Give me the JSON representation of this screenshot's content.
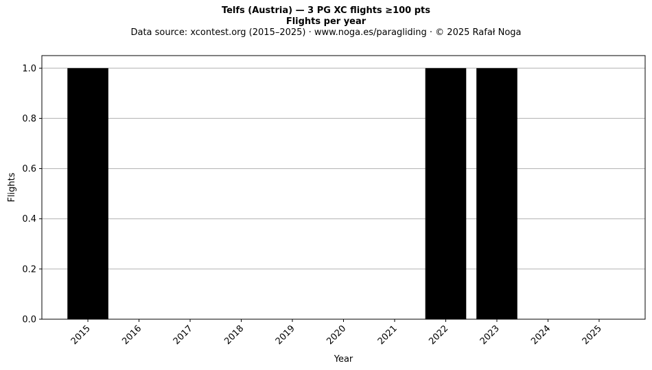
{
  "chart_data": {
    "type": "bar",
    "title": "Telfs (Austria)  —  3 PG XC flights ≥100 pts",
    "subtitle": "Flights per year",
    "source": "Data source: xcontest.org (2015–2025)  ·  www.noga.es/paragliding  ·  © 2025 Rafał Noga",
    "xlabel": "Year",
    "ylabel": "Flights",
    "categories": [
      "2015",
      "2016",
      "2017",
      "2018",
      "2019",
      "2020",
      "2021",
      "2022",
      "2023",
      "2024",
      "2025"
    ],
    "values": [
      1,
      0,
      0,
      0,
      0,
      0,
      0,
      1,
      1,
      0,
      0
    ],
    "ylim": [
      0,
      1.05
    ],
    "yticks": [
      "0.0",
      "0.2",
      "0.4",
      "0.6",
      "0.8",
      "1.0"
    ],
    "grid": "y",
    "bar_color": "#000000",
    "grid_color": "#b0b0b0"
  }
}
